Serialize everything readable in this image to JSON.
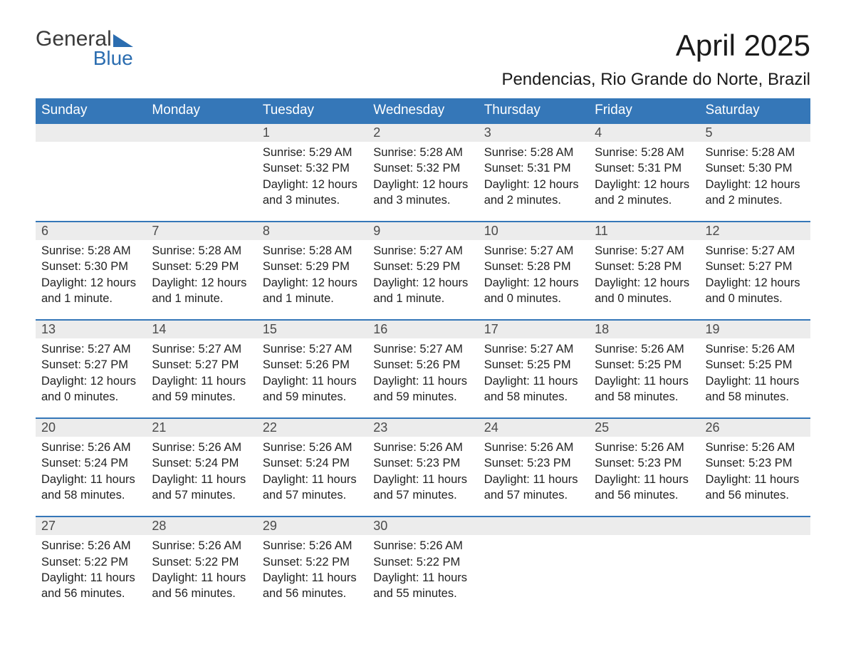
{
  "logo": {
    "word1": "General",
    "word2": "Blue"
  },
  "title": "April 2025",
  "location": "Pendencias, Rio Grande do Norte, Brazil",
  "colors": {
    "header_bg": "#3577b8",
    "header_text": "#ffffff",
    "dayrow_bg": "#ececec",
    "divider": "#3577b8",
    "body_text": "#222222",
    "logo_blue": "#2b6db0",
    "logo_gray": "#3a3a3a",
    "page_bg": "#ffffff"
  },
  "typography": {
    "title_fontsize": 42,
    "location_fontsize": 24,
    "weekday_fontsize": 19,
    "daynum_fontsize": 18,
    "body_fontsize": 16.5,
    "font_family": "Arial"
  },
  "weekdays": [
    "Sunday",
    "Monday",
    "Tuesday",
    "Wednesday",
    "Thursday",
    "Friday",
    "Saturday"
  ],
  "weeks": [
    [
      null,
      null,
      {
        "n": "1",
        "sr": "5:29 AM",
        "ss": "5:32 PM",
        "d1": "12 hours",
        "d2": "and 3 minutes."
      },
      {
        "n": "2",
        "sr": "5:28 AM",
        "ss": "5:32 PM",
        "d1": "12 hours",
        "d2": "and 3 minutes."
      },
      {
        "n": "3",
        "sr": "5:28 AM",
        "ss": "5:31 PM",
        "d1": "12 hours",
        "d2": "and 2 minutes."
      },
      {
        "n": "4",
        "sr": "5:28 AM",
        "ss": "5:31 PM",
        "d1": "12 hours",
        "d2": "and 2 minutes."
      },
      {
        "n": "5",
        "sr": "5:28 AM",
        "ss": "5:30 PM",
        "d1": "12 hours",
        "d2": "and 2 minutes."
      }
    ],
    [
      {
        "n": "6",
        "sr": "5:28 AM",
        "ss": "5:30 PM",
        "d1": "12 hours",
        "d2": "and 1 minute."
      },
      {
        "n": "7",
        "sr": "5:28 AM",
        "ss": "5:29 PM",
        "d1": "12 hours",
        "d2": "and 1 minute."
      },
      {
        "n": "8",
        "sr": "5:28 AM",
        "ss": "5:29 PM",
        "d1": "12 hours",
        "d2": "and 1 minute."
      },
      {
        "n": "9",
        "sr": "5:27 AM",
        "ss": "5:29 PM",
        "d1": "12 hours",
        "d2": "and 1 minute."
      },
      {
        "n": "10",
        "sr": "5:27 AM",
        "ss": "5:28 PM",
        "d1": "12 hours",
        "d2": "and 0 minutes."
      },
      {
        "n": "11",
        "sr": "5:27 AM",
        "ss": "5:28 PM",
        "d1": "12 hours",
        "d2": "and 0 minutes."
      },
      {
        "n": "12",
        "sr": "5:27 AM",
        "ss": "5:27 PM",
        "d1": "12 hours",
        "d2": "and 0 minutes."
      }
    ],
    [
      {
        "n": "13",
        "sr": "5:27 AM",
        "ss": "5:27 PM",
        "d1": "12 hours",
        "d2": "and 0 minutes."
      },
      {
        "n": "14",
        "sr": "5:27 AM",
        "ss": "5:27 PM",
        "d1": "11 hours",
        "d2": "and 59 minutes."
      },
      {
        "n": "15",
        "sr": "5:27 AM",
        "ss": "5:26 PM",
        "d1": "11 hours",
        "d2": "and 59 minutes."
      },
      {
        "n": "16",
        "sr": "5:27 AM",
        "ss": "5:26 PM",
        "d1": "11 hours",
        "d2": "and 59 minutes."
      },
      {
        "n": "17",
        "sr": "5:27 AM",
        "ss": "5:25 PM",
        "d1": "11 hours",
        "d2": "and 58 minutes."
      },
      {
        "n": "18",
        "sr": "5:26 AM",
        "ss": "5:25 PM",
        "d1": "11 hours",
        "d2": "and 58 minutes."
      },
      {
        "n": "19",
        "sr": "5:26 AM",
        "ss": "5:25 PM",
        "d1": "11 hours",
        "d2": "and 58 minutes."
      }
    ],
    [
      {
        "n": "20",
        "sr": "5:26 AM",
        "ss": "5:24 PM",
        "d1": "11 hours",
        "d2": "and 58 minutes."
      },
      {
        "n": "21",
        "sr": "5:26 AM",
        "ss": "5:24 PM",
        "d1": "11 hours",
        "d2": "and 57 minutes."
      },
      {
        "n": "22",
        "sr": "5:26 AM",
        "ss": "5:24 PM",
        "d1": "11 hours",
        "d2": "and 57 minutes."
      },
      {
        "n": "23",
        "sr": "5:26 AM",
        "ss": "5:23 PM",
        "d1": "11 hours",
        "d2": "and 57 minutes."
      },
      {
        "n": "24",
        "sr": "5:26 AM",
        "ss": "5:23 PM",
        "d1": "11 hours",
        "d2": "and 57 minutes."
      },
      {
        "n": "25",
        "sr": "5:26 AM",
        "ss": "5:23 PM",
        "d1": "11 hours",
        "d2": "and 56 minutes."
      },
      {
        "n": "26",
        "sr": "5:26 AM",
        "ss": "5:23 PM",
        "d1": "11 hours",
        "d2": "and 56 minutes."
      }
    ],
    [
      {
        "n": "27",
        "sr": "5:26 AM",
        "ss": "5:22 PM",
        "d1": "11 hours",
        "d2": "and 56 minutes."
      },
      {
        "n": "28",
        "sr": "5:26 AM",
        "ss": "5:22 PM",
        "d1": "11 hours",
        "d2": "and 56 minutes."
      },
      {
        "n": "29",
        "sr": "5:26 AM",
        "ss": "5:22 PM",
        "d1": "11 hours",
        "d2": "and 56 minutes."
      },
      {
        "n": "30",
        "sr": "5:26 AM",
        "ss": "5:22 PM",
        "d1": "11 hours",
        "d2": "and 55 minutes."
      },
      null,
      null,
      null
    ]
  ],
  "labels": {
    "sunrise_prefix": "Sunrise: ",
    "sunset_prefix": "Sunset: ",
    "daylight_prefix": "Daylight: "
  }
}
